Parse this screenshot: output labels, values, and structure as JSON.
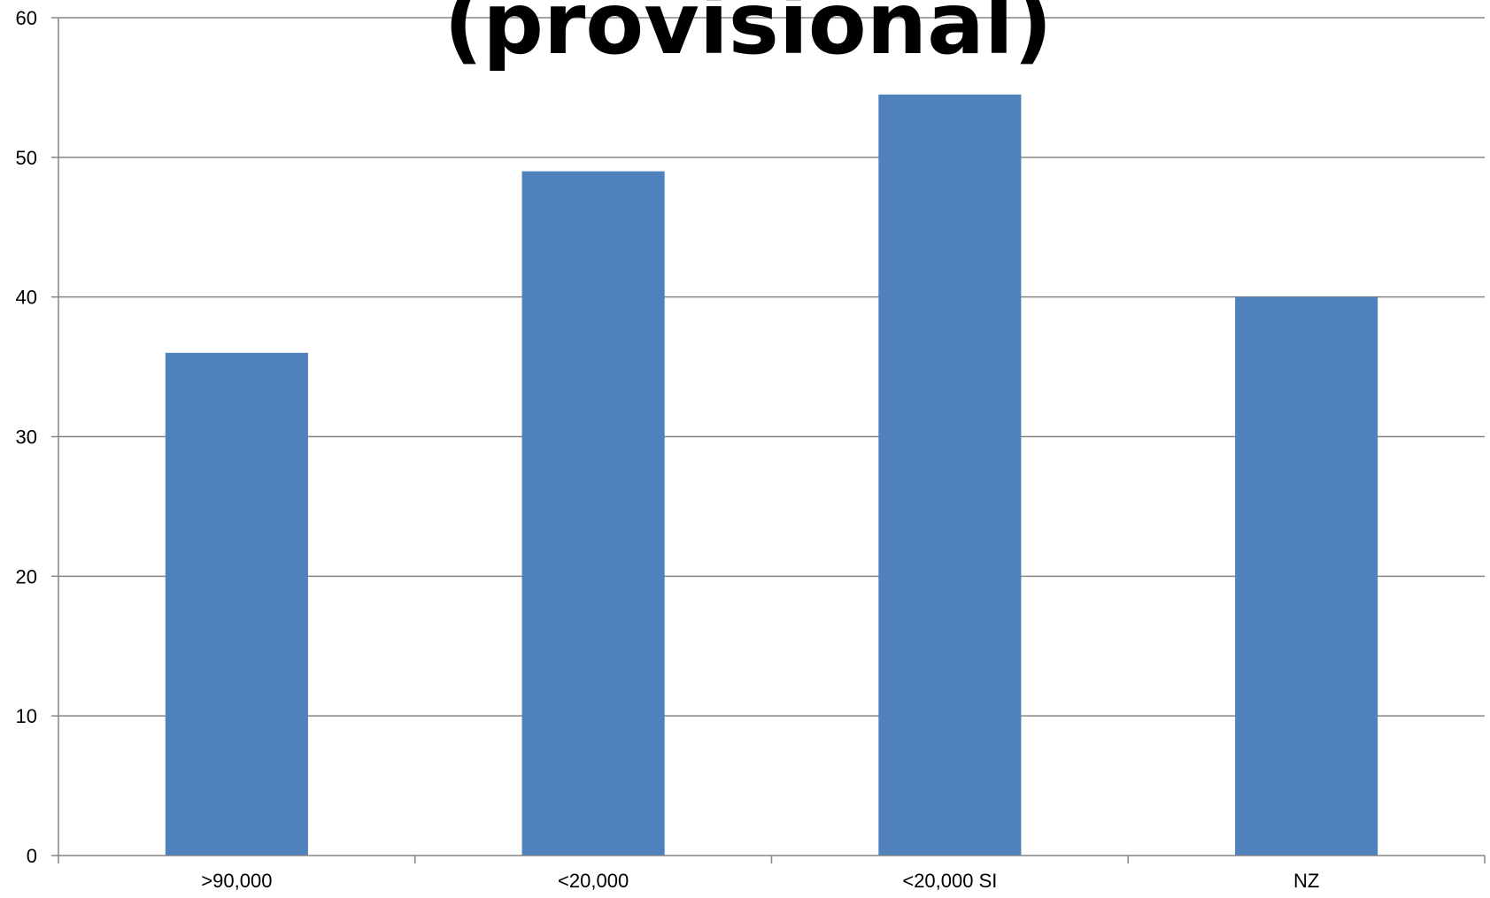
{
  "chart_data": {
    "type": "bar",
    "title": "(provisional)",
    "categories": [
      ">90,000",
      "<20,000",
      "<20,000 SI",
      "NZ"
    ],
    "series": [
      {
        "values": [
          36,
          49,
          54.5,
          40
        ]
      }
    ],
    "ylim": [
      0,
      60
    ],
    "yticks": [
      0,
      10,
      20,
      30,
      40,
      50,
      60
    ],
    "grid": true,
    "legend": "none",
    "colors": {
      "bar": "#4f81bd",
      "grid": "#868686",
      "axis": "#868686"
    }
  }
}
